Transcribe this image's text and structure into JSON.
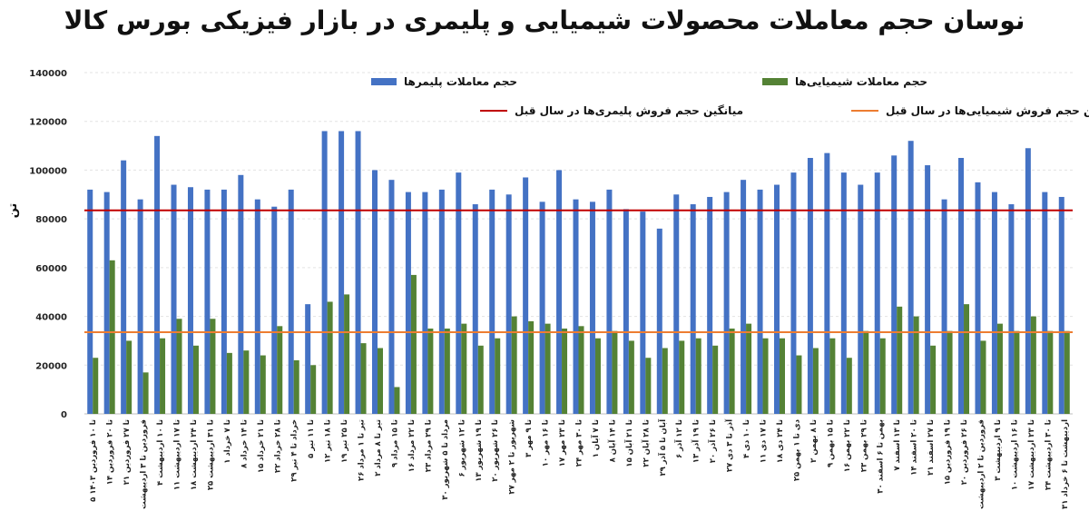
{
  "chart_data": {
    "type": "bar",
    "title": "نوسان حجم معاملات محصولات شیمیایی و پلیمری در بازار فیزیکی بورس کالا",
    "ylabel": "تن",
    "ylim": [
      0,
      140000
    ],
    "yticks": [
      0,
      20000,
      40000,
      60000,
      80000,
      100000,
      120000,
      140000
    ],
    "grid": true,
    "legend_position": "top",
    "categories": [
      "۵ تا ۱۰ فروردین ۱۴۰۳",
      "۱۴ تا ۲۰ فروردین",
      "۲۱ تا ۲۷ فروردین",
      "۲۸ فروردین تا ۳ اردیبهشت",
      "۴ تا ۱۰ اردیبهشت",
      "۱۱ تا ۱۷ اردیبهشت",
      "۱۸ تا ۲۴ اردیبهشت",
      "۲۵ تا ۳۱ اردیبهشت",
      "۱ تا ۷ خرداد",
      "۸ تا ۱۴ خرداد",
      "۱۵ تا ۲۱ خرداد",
      "۲۲ تا ۲۸ خرداد",
      "۲۹ خرداد تا ۴ تیر",
      "۵ تا ۱۱ تیر",
      "۱۲ تا ۱۸ تیر",
      "۱۹ تا ۲۵ تیر",
      "۲۶ تیر تا ۱ مرداد",
      "۲ تیر تا ۸ مرداد",
      "۹ تا ۱۵ مرداد",
      "۱۶ تا ۲۲ مرداد",
      "۲۳ تا ۲۹ مرداد",
      "۳۰ مرداد تا ۵ شهریور",
      "۶ تا ۱۲ شهریور",
      "۱۳ تا ۱۹ شهریور",
      "۲۰ تا ۲۶ شهریور",
      "۲۷ شهریور تا ۲ مهر",
      "۳ تا ۹ مهر",
      "۱۰ تا ۱۶ مهر",
      "۱۷ تا ۲۳ مهر",
      "۲۴ تا ۳۰ مهر",
      "۱ تا ۷ آبان",
      "۸ تا ۱۴ آبان",
      "۱۵ تا ۲۱ آبان",
      "۲۲ تا ۲۸ آبان",
      "۲۹ آبان تا ۵ آذر",
      "۶ تا ۱۲ آذر",
      "۱۳ تا ۱۹ آذر",
      "۲۰ تا ۲۶ آذر",
      "۲۷ آذر تا ۳ دی",
      "۴ تا ۱۰ دی",
      "۱۱ تا ۱۷ دی",
      "۱۸ تا ۲۴ دی",
      "۲۵ دی تا ۱ بهمن",
      "۲ تا ۸ بهمن",
      "۹ تا ۱۵ بهمن",
      "۱۶ تا ۲۲ بهمن",
      "۲۳ تا ۲۹ بهمن",
      "۳۰ بهمن تا ۶ اسفند",
      "۷ تا ۱۳ اسفند",
      "۱۴ تا ۲۰ اسفند",
      "۲۱ تا ۲۷ اسفند",
      "۱۵ تا ۱۹ فروردین",
      "۲۰ تا ۲۶ فروردین",
      "۲۷ فروردین تا ۲ اردیبهشت",
      "۳ تا ۹ اردیبهشت",
      "۱۰ تا ۱۶ اردیبهشت",
      "۱۷ تا ۲۳ اردیبهشت",
      "۲۴ تا ۳۰ اردیبهشت",
      "۳۱ اردیبهشت تا ۶ خرداد"
    ],
    "series": [
      {
        "name": "حجم معاملات پلیمرها",
        "color": "#4472C4",
        "values": [
          92000,
          91000,
          104000,
          88000,
          114000,
          94000,
          93000,
          92000,
          92000,
          98000,
          88000,
          85000,
          92000,
          45000,
          116000,
          116000,
          116000,
          100000,
          96000,
          91000,
          91000,
          92000,
          99000,
          86000,
          92000,
          90000,
          97000,
          87000,
          100000,
          88000,
          87000,
          92000,
          84000,
          83000,
          76000,
          90000,
          86000,
          89000,
          91000,
          96000,
          92000,
          94000,
          99000,
          105000,
          107000,
          99000,
          94000,
          99000,
          106000,
          112000,
          102000,
          88000,
          105000,
          95000,
          91000,
          86000,
          109000,
          91000,
          89000
        ]
      },
      {
        "name": "حجم معاملات شیمیایی‌ها",
        "color": "#548235",
        "values": [
          23000,
          63000,
          30000,
          17000,
          31000,
          39000,
          28000,
          39000,
          25000,
          26000,
          24000,
          36000,
          22000,
          20000,
          46000,
          49000,
          29000,
          27000,
          11000,
          57000,
          35000,
          35000,
          37000,
          28000,
          31000,
          40000,
          38000,
          37000,
          35000,
          36000,
          31000,
          34000,
          30000,
          23000,
          27000,
          30000,
          31000,
          28000,
          35000,
          37000,
          31000,
          31000,
          24000,
          27000,
          31000,
          23000,
          34000,
          31000,
          44000,
          40000,
          28000,
          34000,
          45000,
          30000,
          37000,
          34000,
          40000,
          34000,
          34000
        ]
      }
    ],
    "reference_lines": [
      {
        "name": "میانگین حجم فروش پلیمری‌ها در سال قبل",
        "value": 83500,
        "color": "#C00000"
      },
      {
        "name": "میانگین حجم فروش شیمیایی‌ها در سال قبل",
        "value": 33500,
        "color": "#ED7D31"
      }
    ]
  }
}
